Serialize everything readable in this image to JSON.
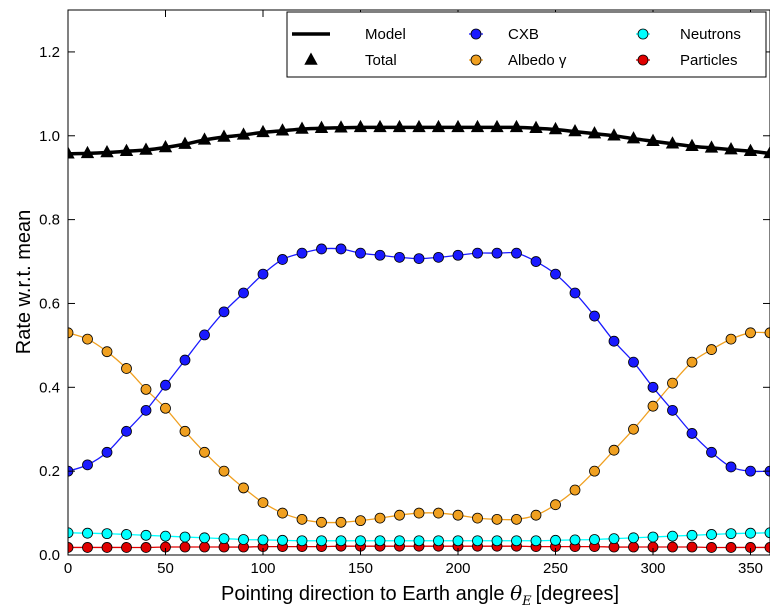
{
  "chart_data": {
    "type": "line",
    "xlabel": "Pointing direction to Earth angle",
    "xlabel_symbol": "θ",
    "xlabel_subscript": "E",
    "xlabel_unit": "[degrees]",
    "ylabel": "Rate w.r.t. mean",
    "xlim": [
      0,
      360
    ],
    "ylim": [
      0,
      1.3
    ],
    "xticks": [
      "0",
      "50",
      "100",
      "150",
      "200",
      "250",
      "300",
      "350"
    ],
    "yticks": [
      "0.0",
      "0.2",
      "0.4",
      "0.6",
      "0.8",
      "1.0",
      "1.2"
    ],
    "grid": false,
    "legend_position": "top-right",
    "x": [
      0,
      10,
      20,
      30,
      40,
      50,
      60,
      70,
      80,
      90,
      100,
      110,
      120,
      130,
      140,
      150,
      160,
      170,
      180,
      190,
      200,
      210,
      220,
      230,
      240,
      250,
      260,
      270,
      280,
      290,
      300,
      310,
      320,
      330,
      340,
      350,
      360
    ],
    "series": [
      {
        "name": "Total",
        "color": "#000000",
        "marker": "triangle",
        "values": [
          0.957,
          0.958,
          0.96,
          0.963,
          0.966,
          0.972,
          0.98,
          0.99,
          0.997,
          1.002,
          1.008,
          1.012,
          1.016,
          1.018,
          1.019,
          1.02,
          1.02,
          1.02,
          1.02,
          1.02,
          1.02,
          1.02,
          1.02,
          1.02,
          1.018,
          1.015,
          1.01,
          1.005,
          1.0,
          0.993,
          0.987,
          0.981,
          0.975,
          0.971,
          0.967,
          0.963,
          0.958
        ]
      },
      {
        "name": "CXB",
        "color": "#1a1aff",
        "marker": "circle",
        "values": [
          0.2,
          0.215,
          0.245,
          0.295,
          0.345,
          0.405,
          0.465,
          0.525,
          0.58,
          0.625,
          0.67,
          0.705,
          0.72,
          0.73,
          0.73,
          0.72,
          0.715,
          0.71,
          0.707,
          0.71,
          0.715,
          0.72,
          0.72,
          0.72,
          0.7,
          0.67,
          0.625,
          0.57,
          0.51,
          0.46,
          0.4,
          0.345,
          0.29,
          0.245,
          0.21,
          0.2,
          0.2
        ]
      },
      {
        "name": "Albedo γ",
        "color": "#f0a020",
        "marker": "circle",
        "values": [
          0.53,
          0.515,
          0.485,
          0.445,
          0.395,
          0.35,
          0.295,
          0.245,
          0.2,
          0.16,
          0.125,
          0.1,
          0.085,
          0.078,
          0.078,
          0.082,
          0.088,
          0.095,
          0.1,
          0.1,
          0.095,
          0.088,
          0.085,
          0.085,
          0.095,
          0.12,
          0.155,
          0.2,
          0.25,
          0.3,
          0.355,
          0.41,
          0.46,
          0.49,
          0.515,
          0.53,
          0.53
        ]
      },
      {
        "name": "Neutrons",
        "color": "#00ffff",
        "marker": "circle",
        "values": [
          0.053,
          0.052,
          0.051,
          0.049,
          0.047,
          0.045,
          0.043,
          0.041,
          0.039,
          0.037,
          0.036,
          0.035,
          0.034,
          0.034,
          0.034,
          0.034,
          0.034,
          0.034,
          0.034,
          0.034,
          0.034,
          0.034,
          0.034,
          0.034,
          0.034,
          0.035,
          0.036,
          0.037,
          0.039,
          0.041,
          0.043,
          0.045,
          0.047,
          0.049,
          0.051,
          0.052,
          0.053
        ]
      },
      {
        "name": "Particles",
        "color": "#e00000",
        "marker": "circle",
        "values": [
          0.018,
          0.018,
          0.018,
          0.018,
          0.018,
          0.019,
          0.019,
          0.019,
          0.019,
          0.019,
          0.02,
          0.02,
          0.02,
          0.02,
          0.021,
          0.021,
          0.021,
          0.021,
          0.021,
          0.021,
          0.021,
          0.021,
          0.021,
          0.021,
          0.02,
          0.02,
          0.02,
          0.02,
          0.019,
          0.019,
          0.019,
          0.019,
          0.019,
          0.018,
          0.018,
          0.018,
          0.018
        ]
      }
    ],
    "legend": [
      {
        "label": "Model",
        "style": "line"
      },
      {
        "label": "CXB",
        "style": "marker",
        "series": 1
      },
      {
        "label": "Neutrons",
        "style": "marker",
        "series": 3
      },
      {
        "label": "Total",
        "style": "triangle",
        "series": 0
      },
      {
        "label": "Albedo γ",
        "style": "marker",
        "series": 2
      },
      {
        "label": "Particles",
        "style": "marker",
        "series": 4
      }
    ]
  }
}
